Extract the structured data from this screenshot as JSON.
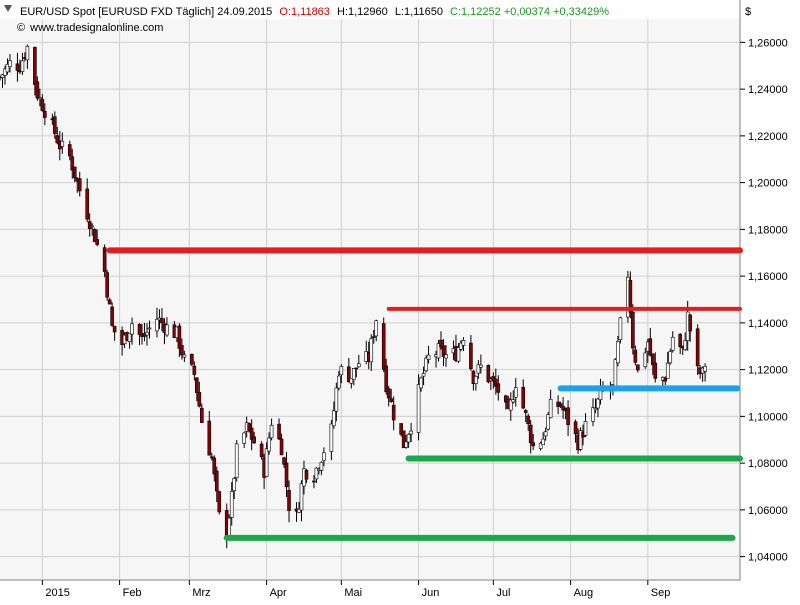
{
  "header": {
    "instrument": "EUR/USD Spot [EURUSD FXD  Täglich] 24.09.2015",
    "open": "O:1,11863",
    "high": "H:1,12960",
    "low": "L:1,11650",
    "close_change": "C:1,12252 +0,00374 +0,33429%",
    "website": "www.tradesignalonline.com",
    "currency": "$"
  },
  "colors": {
    "open": "#d40000",
    "neutral": "#000000",
    "change": "#1a9b1a",
    "bullish": "#ffffff",
    "bearish": "#8b0000",
    "wick": "#000000",
    "plot_bg": "#f6f6f6",
    "grid": "#cfcfcf"
  },
  "chart_data": {
    "type": "candlestick",
    "frequency": "daily",
    "ylim": [
      1.03,
      1.27
    ],
    "y_ticks": [
      {
        "value": 1.04,
        "label": "1,04000"
      },
      {
        "value": 1.06,
        "label": "1,06000"
      },
      {
        "value": 1.08,
        "label": "1,08000"
      },
      {
        "value": 1.1,
        "label": "1,10000"
      },
      {
        "value": 1.12,
        "label": "1,12000"
      },
      {
        "value": 1.14,
        "label": "1,14000"
      },
      {
        "value": 1.16,
        "label": "1,16000"
      },
      {
        "value": 1.18,
        "label": "1,18000"
      },
      {
        "value": 1.2,
        "label": "1,20000"
      },
      {
        "value": 1.22,
        "label": "1,22000"
      },
      {
        "value": 1.24,
        "label": "1,24000"
      },
      {
        "value": 1.26,
        "label": "1,26000"
      }
    ],
    "x_range": [
      "2014-12-15",
      "2015-10-08"
    ],
    "x_ticks": [
      {
        "date": "2015-01-01",
        "label": "2015"
      },
      {
        "date": "2015-02-01",
        "label": "Feb"
      },
      {
        "date": "2015-03-01",
        "label": "Mrz"
      },
      {
        "date": "2015-04-01",
        "label": "Apr"
      },
      {
        "date": "2015-05-01",
        "label": "Mai"
      },
      {
        "date": "2015-06-01",
        "label": "Jun"
      },
      {
        "date": "2015-07-01",
        "label": "Jul"
      },
      {
        "date": "2015-08-01",
        "label": "Aug"
      },
      {
        "date": "2015-09-01",
        "label": "Sep"
      }
    ],
    "close_path": [
      [
        "2014-12-15",
        1.245
      ],
      [
        "2014-12-19",
        1.251
      ],
      [
        "2014-12-23",
        1.25
      ],
      [
        "2014-12-26",
        1.258
      ],
      [
        "2014-12-30",
        1.238
      ],
      [
        "2015-01-05",
        1.224
      ],
      [
        "2015-01-08",
        1.216
      ],
      [
        "2015-01-12",
        1.211
      ],
      [
        "2015-01-15",
        1.2
      ],
      [
        "2015-01-19",
        1.187
      ],
      [
        "2015-01-22",
        1.177
      ],
      [
        "2015-01-26",
        1.162
      ],
      [
        "2015-01-29",
        1.138
      ],
      [
        "2015-02-02",
        1.131
      ],
      [
        "2015-02-06",
        1.14
      ],
      [
        "2015-02-10",
        1.133
      ],
      [
        "2015-02-16",
        1.142
      ],
      [
        "2015-02-20",
        1.138
      ],
      [
        "2015-02-24",
        1.135
      ],
      [
        "2015-02-27",
        1.124
      ],
      [
        "2015-03-03",
        1.118
      ],
      [
        "2015-03-06",
        1.098
      ],
      [
        "2015-03-10",
        1.082
      ],
      [
        "2015-03-13",
        1.057
      ],
      [
        "2015-03-16",
        1.051
      ],
      [
        "2015-03-18",
        1.065
      ],
      [
        "2015-03-20",
        1.085
      ],
      [
        "2015-03-24",
        1.095
      ],
      [
        "2015-03-27",
        1.089
      ],
      [
        "2015-03-31",
        1.077
      ],
      [
        "2015-04-03",
        1.098
      ],
      [
        "2015-04-07",
        1.087
      ],
      [
        "2015-04-10",
        1.062
      ],
      [
        "2015-04-13",
        1.057
      ],
      [
        "2015-04-16",
        1.077
      ],
      [
        "2015-04-20",
        1.075
      ],
      [
        "2015-04-23",
        1.083
      ],
      [
        "2015-04-27",
        1.094
      ],
      [
        "2015-04-30",
        1.12
      ],
      [
        "2015-05-05",
        1.117
      ],
      [
        "2015-05-08",
        1.123
      ],
      [
        "2015-05-12",
        1.125
      ],
      [
        "2015-05-15",
        1.142
      ],
      [
        "2015-05-19",
        1.114
      ],
      [
        "2015-05-22",
        1.101
      ],
      [
        "2015-05-26",
        1.088
      ],
      [
        "2015-05-29",
        1.097
      ],
      [
        "2015-06-02",
        1.115
      ],
      [
        "2015-06-05",
        1.125
      ],
      [
        "2015-06-09",
        1.128
      ],
      [
        "2015-06-12",
        1.126
      ],
      [
        "2015-06-16",
        1.127
      ],
      [
        "2015-06-19",
        1.135
      ],
      [
        "2015-06-23",
        1.117
      ],
      [
        "2015-06-26",
        1.121
      ],
      [
        "2015-06-30",
        1.115
      ],
      [
        "2015-07-03",
        1.111
      ],
      [
        "2015-07-07",
        1.1
      ],
      [
        "2015-07-10",
        1.115
      ],
      [
        "2015-07-14",
        1.1
      ],
      [
        "2015-07-17",
        1.087
      ],
      [
        "2015-07-21",
        1.091
      ],
      [
        "2015-07-24",
        1.104
      ],
      [
        "2015-07-28",
        1.105
      ],
      [
        "2015-07-31",
        1.098
      ],
      [
        "2015-08-04",
        1.089
      ],
      [
        "2015-08-07",
        1.096
      ],
      [
        "2015-08-11",
        1.103
      ],
      [
        "2015-08-14",
        1.112
      ],
      [
        "2015-08-18",
        1.112
      ],
      [
        "2015-08-21",
        1.139
      ],
      [
        "2015-08-24",
        1.161
      ],
      [
        "2015-08-26",
        1.131
      ],
      [
        "2015-08-28",
        1.119
      ],
      [
        "2015-09-01",
        1.132
      ],
      [
        "2015-09-04",
        1.115
      ],
      [
        "2015-09-08",
        1.117
      ],
      [
        "2015-09-11",
        1.134
      ],
      [
        "2015-09-15",
        1.127
      ],
      [
        "2015-09-17",
        1.143
      ],
      [
        "2015-09-21",
        1.119
      ],
      [
        "2015-09-23",
        1.118
      ],
      [
        "2015-09-24",
        1.1225
      ]
    ],
    "annotations": [
      {
        "type": "horizontal_line",
        "color": "#e02020",
        "y": 1.171,
        "from": "2015-01-28",
        "to": "2015-10-08",
        "thickness": "thick"
      },
      {
        "type": "horizontal_line",
        "color": "#e02020",
        "y": 1.146,
        "from": "2015-05-20",
        "to": "2015-10-08",
        "thickness": "medium"
      },
      {
        "type": "horizontal_line",
        "color": "#1aa3e8",
        "y": 1.112,
        "from": "2015-07-28",
        "to": "2015-10-07",
        "thickness": "thick"
      },
      {
        "type": "horizontal_line",
        "color": "#1ba84a",
        "y": 1.082,
        "from": "2015-05-28",
        "to": "2015-10-08",
        "thickness": "thick"
      },
      {
        "type": "horizontal_line",
        "color": "#1ba84a",
        "y": 1.048,
        "from": "2015-03-16",
        "to": "2015-10-05",
        "thickness": "thick"
      }
    ]
  }
}
